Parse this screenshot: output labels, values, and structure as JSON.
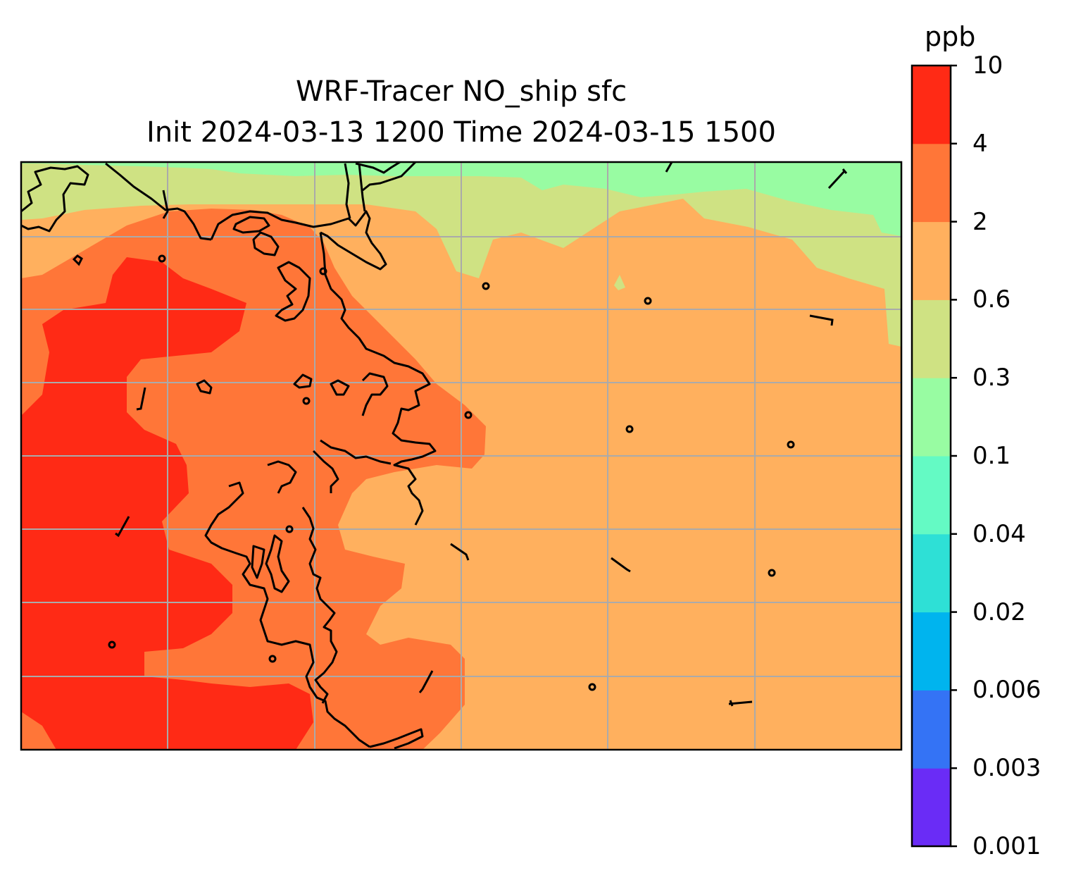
{
  "title": {
    "line1": "WRF-Tracer NO_ship sfc",
    "line2": "Init 2024-03-13 1200 Time 2024-03-15 1500"
  },
  "colorbar": {
    "unit": "ppb",
    "levels": [
      "0.001",
      "0.003",
      "0.006",
      "0.02",
      "0.04",
      "0.1",
      "0.3",
      "0.6",
      "2",
      "4",
      "10"
    ],
    "colors": [
      "#6a2cf6",
      "#3473f5",
      "#00b4ee",
      "#2ee0d6",
      "#64fac4",
      "#98fca2",
      "#cfe283",
      "#ffb05e",
      "#ff7638",
      "#ff2a15"
    ]
  },
  "map": {
    "fill_colors": {
      "0.1-0.3": "#98fca2",
      "0.3-0.6": "#cfe283",
      "0.6-2": "#ffb05e",
      "2-4": "#ff7638",
      "4-10": "#ff2a15"
    },
    "gridline_color": "#aaaaaa",
    "coastline_color": "#000000"
  }
}
